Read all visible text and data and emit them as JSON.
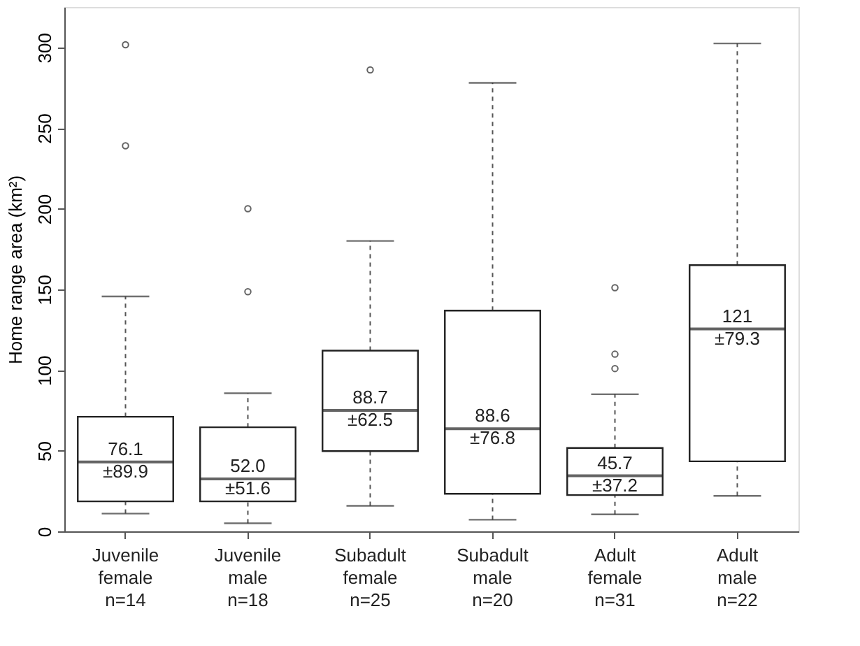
{
  "chart_data": {
    "type": "box",
    "ylabel": "Home range area (km²)",
    "categories": [
      "Juvenile\nfemale\nn=14",
      "Juvenile\nmale\nn=18",
      "Subadult\nfemale\nn=25",
      "Subadult\nmale\nn=20",
      "Adult\nfemale\nn=31",
      "Adult\nmale\nn=22"
    ],
    "boxes": [
      {
        "low": 11,
        "q1": 18.6,
        "median": 43,
        "q3": 71,
        "high": 145.6,
        "outliers": [
          301.6,
          239
        ]
      },
      {
        "low": 5,
        "q1": 18.6,
        "median": 32.5,
        "q3": 64.5,
        "high": 85.6,
        "outliers": [
          200,
          148.5
        ]
      },
      {
        "low": 15.8,
        "q1": 49.7,
        "median": 75,
        "q3": 112,
        "high": 180,
        "outliers": [
          286
        ]
      },
      {
        "low": 7.2,
        "q1": 23.3,
        "median": 63.6,
        "q3": 136.8,
        "high": 278
      },
      {
        "low": 10.5,
        "q1": 22.5,
        "median": 34.4,
        "q3": 51.7,
        "high": 85,
        "outliers": [
          151,
          109.8,
          100.9
        ]
      },
      {
        "low": 22,
        "q1": 43.4,
        "median": 125.4,
        "q3": 165,
        "high": 302.4
      }
    ],
    "annotations": [
      "76.1\n±89.9",
      "52.0\n±51.6",
      "88.7\n±62.5",
      "88.6\n±76.8",
      "45.7\n±37.2",
      "121\n±79.3"
    ],
    "ylim": [
      0,
      325
    ],
    "yticks": [
      0,
      50,
      100,
      150,
      200,
      250,
      300
    ],
    "grid": false
  }
}
